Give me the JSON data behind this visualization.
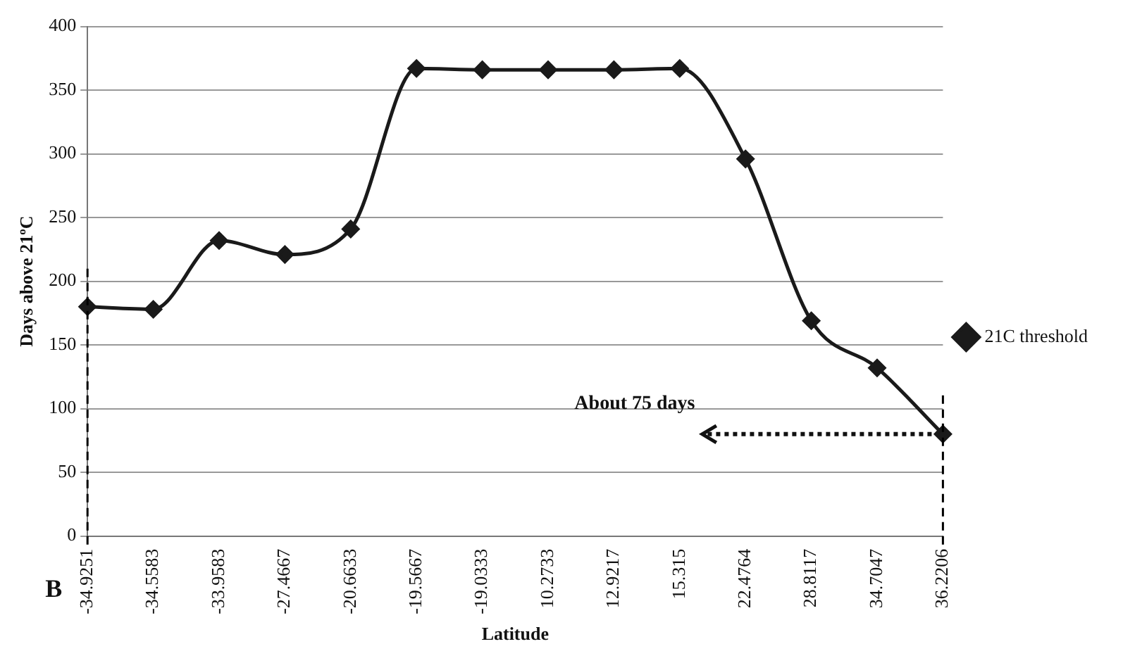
{
  "chart_data": {
    "type": "line",
    "xlabel": "Latitude",
    "ylabel": "Days above 21ºC",
    "categories": [
      "-34.9251",
      "-34.5583",
      "-33.9583",
      "-27.4667",
      "-20.6633",
      "-19.5667",
      "-19.0333",
      "10.2733",
      "12.9217",
      "15.315",
      "22.4764",
      "28.8117",
      "34.7047",
      "36.2206"
    ],
    "series": [
      {
        "name": "21C threshold",
        "color": "#1a1a1a",
        "values": [
          180,
          178,
          232,
          221,
          241,
          367,
          366,
          366,
          366,
          367,
          296,
          169,
          132,
          80
        ]
      }
    ],
    "ylim": [
      0,
      400
    ],
    "yticks": [
      0,
      50,
      100,
      150,
      200,
      250,
      300,
      350,
      400
    ],
    "grid": "y",
    "legend": "right",
    "marker": "diamond",
    "line_style": "solid",
    "ref_lines": [
      {
        "axis": "x",
        "value": "-34.9251",
        "line_style": "dashed",
        "color": "#000000"
      },
      {
        "axis": "x",
        "value": "36.2206",
        "line_style": "dashed",
        "color": "#000000"
      }
    ],
    "annotations": [
      {
        "text": "About 75 days",
        "x": "36.2206",
        "y": 80
      },
      "B"
    ]
  }
}
